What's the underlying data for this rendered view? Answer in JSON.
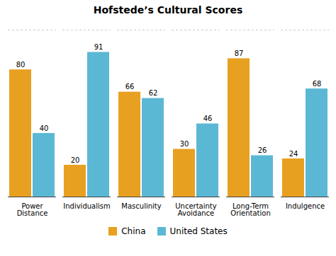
{
  "chart_data": {
    "type": "bar",
    "title": "Hofstede’s Cultural Scores",
    "categories": [
      "Power\nDistance",
      "Individualism",
      "Masculinity",
      "Uncertainty\nAvoidance",
      "Long-Term\nOrientation",
      "Indulgence"
    ],
    "series": [
      {
        "name": "China",
        "color": "#E8A020",
        "values": [
          80,
          20,
          66,
          30,
          87,
          24
        ]
      },
      {
        "name": "United States",
        "color": "#5BB8D4",
        "values": [
          40,
          91,
          62,
          46,
          26,
          68
        ]
      }
    ],
    "ylim": [
      0,
      105
    ],
    "tick_labels": "x",
    "data_labels": true,
    "grid": false,
    "legend": "bottom"
  }
}
